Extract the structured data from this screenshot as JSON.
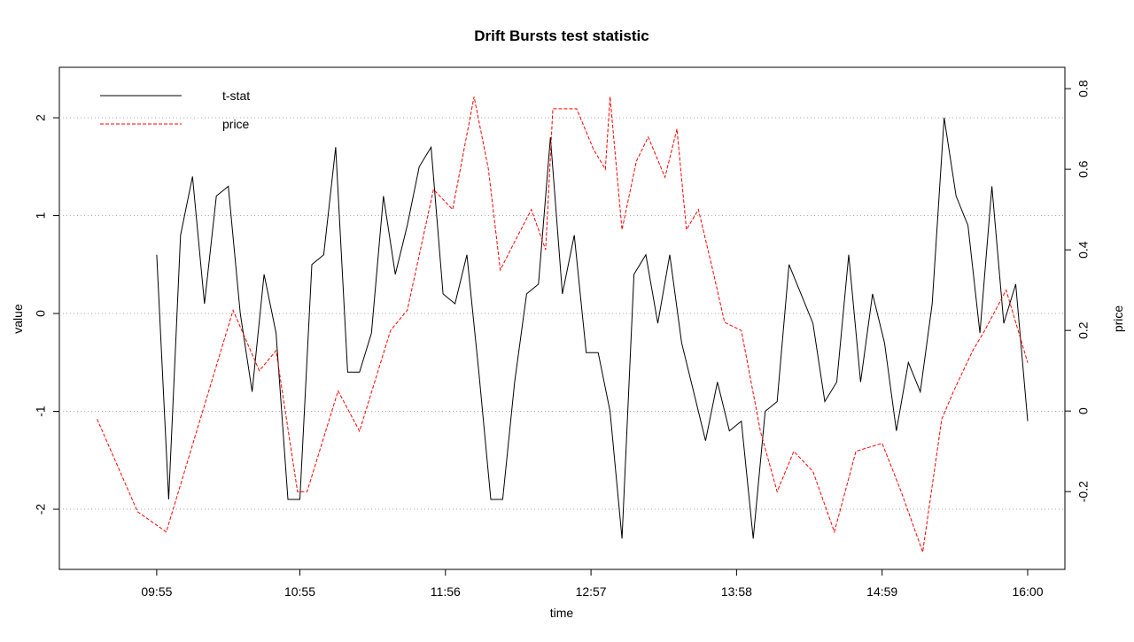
{
  "chart_data": {
    "type": "line",
    "title": "Drift Bursts test statistic",
    "xlabel": "time",
    "ylabel": "value",
    "y2label": "price",
    "xlim": [
      554.2,
      975.6
    ],
    "xticks": [
      {
        "value": 595,
        "label": "09:55"
      },
      {
        "value": 655,
        "label": "10:55"
      },
      {
        "value": 716,
        "label": "11:56"
      },
      {
        "value": 777,
        "label": "12:57"
      },
      {
        "value": 838,
        "label": "13:58"
      },
      {
        "value": 899,
        "label": "14:59"
      },
      {
        "value": 960,
        "label": "16:00"
      }
    ],
    "ylim": [
      -2.615,
      2.516
    ],
    "yticks": [
      -2,
      -1,
      0,
      1,
      2
    ],
    "y2lim": [
      -0.393,
      0.853
    ],
    "y2ticks": [
      -0.2,
      0.0,
      0.2,
      0.4,
      0.6,
      0.8
    ],
    "grid": true,
    "legend": "top-left",
    "series": [
      {
        "name": "t-stat",
        "color": "#000000",
        "dash": false,
        "x": [
          595,
          600,
          605,
          610,
          615,
          620,
          625,
          630,
          635,
          640,
          645,
          650,
          655,
          660,
          665,
          670,
          675,
          680,
          685,
          690,
          695,
          700,
          705,
          710,
          715,
          720,
          725,
          730,
          735,
          740,
          745,
          750,
          755,
          760,
          765,
          770,
          775,
          780,
          785,
          790,
          795,
          800,
          805,
          810,
          815,
          820,
          825,
          830,
          835,
          840,
          845,
          850,
          855,
          860,
          865,
          870,
          875,
          880,
          885,
          890,
          895,
          900,
          905,
          910,
          915,
          920,
          925,
          930,
          935,
          940,
          945,
          950,
          955,
          960
        ],
        "values": [
          0.6,
          -1.9,
          0.8,
          1.4,
          0.1,
          1.2,
          1.3,
          0.0,
          -0.8,
          0.4,
          -0.2,
          -1.9,
          -1.9,
          0.5,
          0.6,
          1.7,
          -0.6,
          -0.6,
          -0.2,
          1.2,
          0.4,
          0.9,
          1.5,
          1.7,
          0.2,
          0.1,
          0.6,
          -0.6,
          -1.9,
          -1.9,
          -0.7,
          0.2,
          0.3,
          1.8,
          0.2,
          0.8,
          -0.4,
          -0.4,
          -1.0,
          -2.3,
          0.4,
          0.6,
          -0.1,
          0.6,
          -0.3,
          -0.8,
          -1.3,
          -0.7,
          -1.2,
          -1.1,
          -2.3,
          -1.0,
          -0.9,
          0.5,
          0.2,
          -0.1,
          -0.9,
          -0.7,
          0.6,
          -0.7,
          0.2,
          -0.3,
          -1.2,
          -0.5,
          -0.8,
          0.1,
          2.0,
          1.2,
          0.9,
          -0.2,
          1.3,
          -0.1,
          0.3,
          -1.1
        ]
      },
      {
        "name": "price",
        "color": "#ff0000",
        "dash": true,
        "axis": "y2",
        "x": [
          570,
          587,
          599,
          627,
          638,
          645,
          654,
          658,
          671,
          680,
          693,
          700,
          711,
          719,
          728,
          734,
          739,
          745,
          752,
          758,
          761,
          771,
          778,
          783,
          785,
          790,
          796,
          801,
          808,
          813,
          817,
          822,
          828,
          833,
          840,
          848,
          855,
          862,
          870,
          879,
          888,
          899,
          907,
          916,
          924,
          929,
          937,
          942,
          951,
          960
        ],
        "values": [
          -0.02,
          -0.25,
          -0.3,
          0.25,
          0.1,
          0.15,
          -0.2,
          -0.2,
          0.05,
          -0.05,
          0.2,
          0.25,
          0.55,
          0.5,
          0.78,
          0.6,
          0.35,
          0.42,
          0.5,
          0.4,
          0.75,
          0.75,
          0.65,
          0.6,
          0.78,
          0.45,
          0.62,
          0.68,
          0.58,
          0.7,
          0.45,
          0.5,
          0.35,
          0.22,
          0.2,
          -0.05,
          -0.2,
          -0.1,
          -0.15,
          -0.3,
          -0.1,
          -0.08,
          -0.2,
          -0.35,
          -0.02,
          0.05,
          0.15,
          0.2,
          0.3,
          0.12
        ]
      }
    ]
  }
}
